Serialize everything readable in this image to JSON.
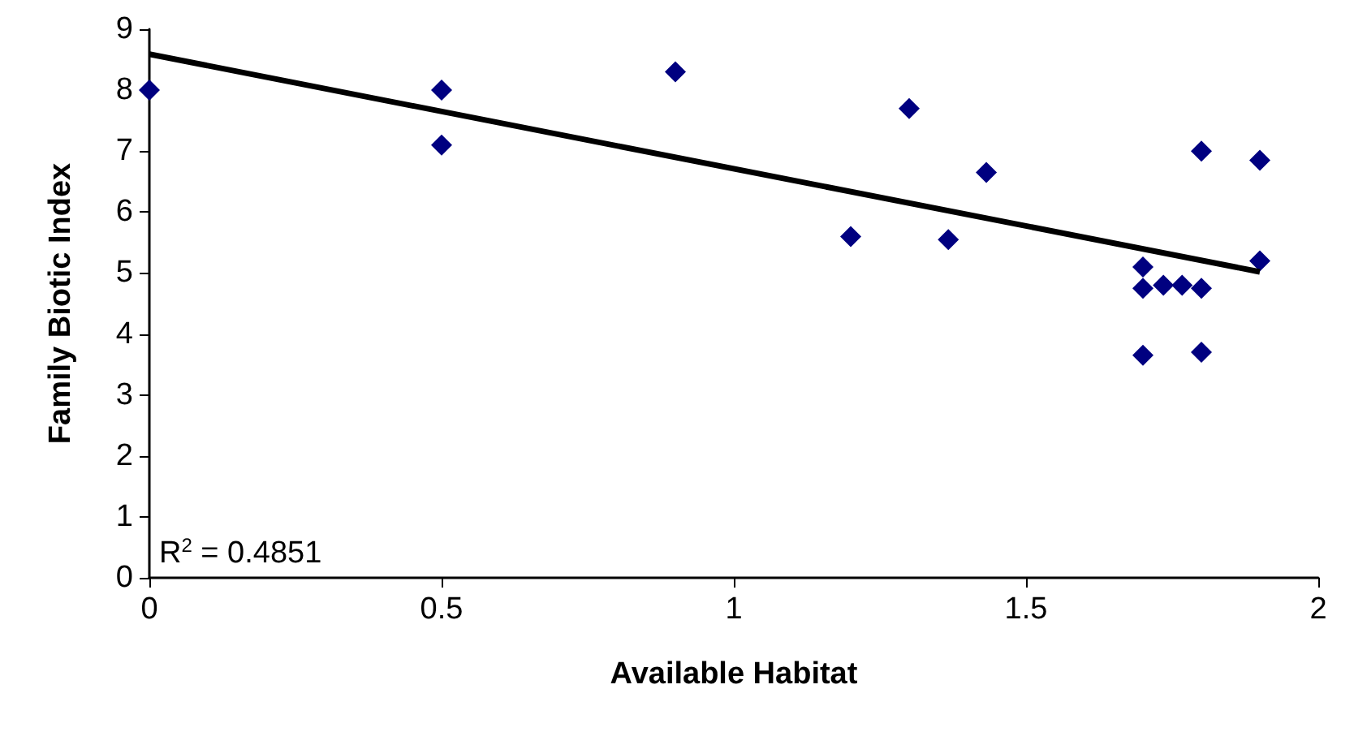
{
  "chart_data": {
    "type": "scatter",
    "xlabel": "Available Habitat",
    "ylabel": "Family Biotic Index",
    "x": [
      0,
      0.5,
      0.5,
      0.9,
      1.2,
      1.3,
      1.367,
      1.432,
      1.7,
      1.7,
      1.735,
      1.767,
      1.8,
      1.7,
      1.8,
      1.8,
      1.9,
      1.9
    ],
    "series": [
      {
        "color": "#000080",
        "marker": "diamond",
        "values": [
          8.0,
          8.0,
          7.1,
          8.3,
          5.6,
          7.7,
          5.55,
          6.65,
          5.1,
          4.75,
          4.8,
          4.8,
          4.75,
          3.65,
          3.7,
          7.0,
          6.85,
          5.2
        ]
      },
      {
        "type": "line",
        "color": "#000000",
        "marker": "none",
        "line_style": "solid",
        "x": [
          0,
          1.9
        ],
        "values": [
          8.59,
          5.02
        ]
      }
    ],
    "xlim": [
      0,
      2
    ],
    "xticks": [
      0,
      0.5,
      1,
      1.5,
      2
    ],
    "ylim": [
      0,
      9
    ],
    "yticks": [
      0,
      1,
      2,
      3,
      4,
      5,
      6,
      7,
      8,
      9
    ],
    "grid": false,
    "annotations": [
      "R$^{2}$ = 0.4851"
    ]
  }
}
